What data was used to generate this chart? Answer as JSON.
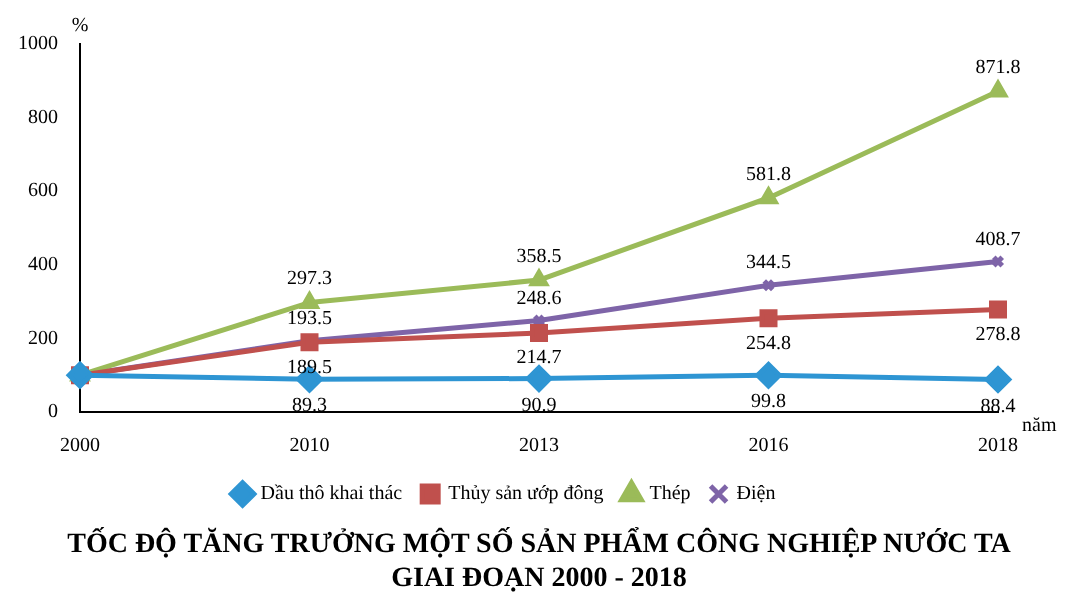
{
  "chart_data": {
    "type": "line",
    "title": "TỐC ĐỘ TĂNG TRƯỞNG MỘT SỐ SẢN PHẨM CÔNG NGHIỆP NƯỚC TA GIAI ĐOẠN 2000 - 2018",
    "xlabel": "năm",
    "ylabel": "%",
    "categories": [
      "2000",
      "2010",
      "2013",
      "2016",
      "2018"
    ],
    "ylim": [
      0,
      1000
    ],
    "yticks": [
      0,
      200,
      400,
      600,
      800,
      1000
    ],
    "grid": false,
    "legend": "bottom",
    "series": [
      {
        "name": "Dầu thô khai thác",
        "color": "#2e95d3",
        "marker": "diamond",
        "values": [
          100,
          89.3,
          90.9,
          99.8,
          88.4
        ],
        "value_labels": [
          null,
          "89.3",
          "90.9",
          "99.8",
          "88.4"
        ]
      },
      {
        "name": "Thủy sản ướp đông",
        "color": "#c0504d",
        "marker": "square",
        "values": [
          100,
          189.5,
          214.7,
          254.8,
          278.8
        ],
        "value_labels": [
          null,
          "189.5",
          "214.7",
          "254.8",
          "278.8"
        ]
      },
      {
        "name": "Thép",
        "color": "#9bbb59",
        "marker": "triangle",
        "values": [
          100,
          297.3,
          358.5,
          581.8,
          871.8
        ],
        "value_labels": [
          null,
          "297.3",
          "358.5",
          "581.8",
          "871.8"
        ]
      },
      {
        "name": "Điện",
        "color": "#7e64a8",
        "marker": "cross",
        "values": [
          100,
          193.5,
          248.6,
          344.5,
          408.7
        ],
        "value_labels": [
          null,
          "193.5",
          "248.6",
          "344.5",
          "408.7"
        ]
      }
    ]
  }
}
